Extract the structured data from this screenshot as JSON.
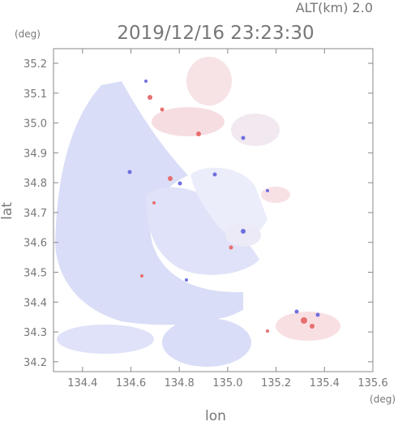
{
  "chart_data": {
    "type": "radar-map",
    "title": "2019/12/16 23:23:30",
    "subtitle": "ALT(km) 2.0",
    "xlabel": "lon",
    "ylabel": "lat",
    "xunit": "(deg)",
    "yunit": "(deg)",
    "xlim": [
      134.28,
      135.6
    ],
    "ylim": [
      34.167,
      35.249
    ],
    "xticks": [
      134.4,
      134.6,
      134.8,
      {
        "value": 135.0,
        "label": "135.0"
      },
      135.2,
      135.4,
      135.6
    ],
    "yticks": [
      34.2,
      34.3,
      34.4,
      34.5,
      34.6,
      34.7,
      34.8,
      34.9,
      {
        "value": 35.0,
        "label": "35.0"
      },
      35.1,
      35.2
    ]
  }
}
